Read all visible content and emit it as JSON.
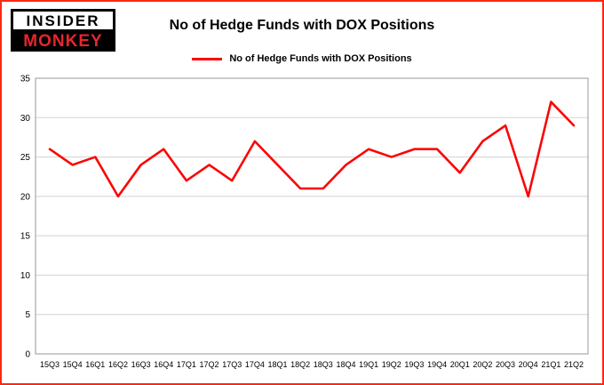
{
  "logo": {
    "line1": "INSIDER",
    "line2": "MONKEY"
  },
  "title": "No of Hedge Funds with DOX Positions",
  "legend": {
    "label": "No of Hedge Funds with DOX Positions",
    "color": "#fb0505"
  },
  "chart_data": {
    "type": "line",
    "title": "No of Hedge Funds with DOX Positions",
    "xlabel": "",
    "ylabel": "",
    "categories": [
      "15Q3",
      "15Q4",
      "16Q1",
      "16Q2",
      "16Q3",
      "16Q4",
      "17Q1",
      "17Q2",
      "17Q3",
      "17Q4",
      "18Q1",
      "18Q2",
      "18Q3",
      "18Q4",
      "19Q1",
      "19Q2",
      "19Q3",
      "19Q4",
      "20Q1",
      "20Q2",
      "20Q3",
      "20Q4",
      "21Q1",
      "21Q2"
    ],
    "series": [
      {
        "name": "No of Hedge Funds with DOX Positions",
        "values": [
          26,
          24,
          25,
          20,
          24,
          26,
          22,
          24,
          22,
          27,
          24,
          21,
          21,
          24,
          26,
          25,
          26,
          26,
          23,
          27,
          29,
          20,
          32,
          29
        ]
      }
    ],
    "ylim": [
      0,
      35
    ],
    "yticks": [
      0,
      5,
      10,
      15,
      20,
      25,
      30,
      35
    ],
    "grid": true,
    "grid_color": "#d3d3d3",
    "line_color": "#fb0505",
    "legend_position": "top"
  }
}
